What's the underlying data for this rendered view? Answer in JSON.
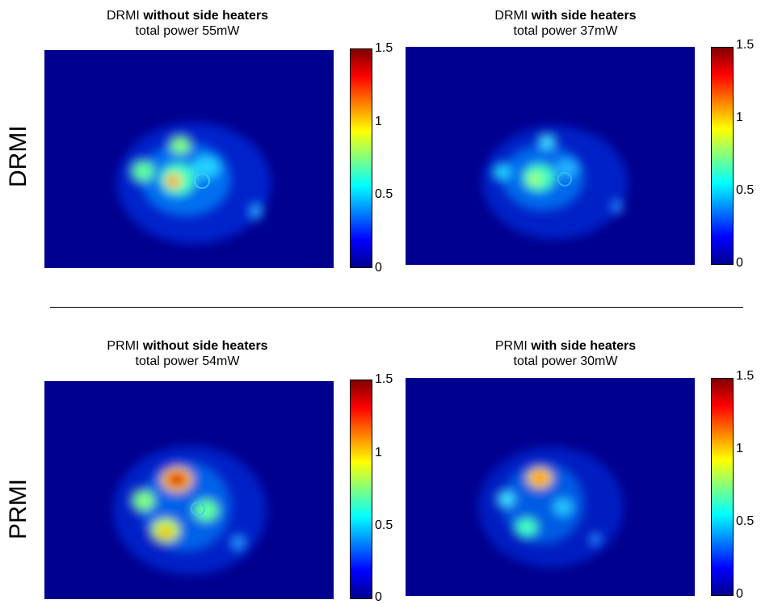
{
  "row_labels": {
    "top": "DRMI",
    "bottom": "PRMI"
  },
  "panels": [
    {
      "id": "drmi-without",
      "title_prefix": "DRMI",
      "title_bold": "without side heaters",
      "subtitle": "total power 55mW"
    },
    {
      "id": "drmi-with",
      "title_prefix": "DRMI",
      "title_bold": "with side heaters",
      "subtitle": "total power 37mW"
    },
    {
      "id": "prmi-without",
      "title_prefix": "PRMI",
      "title_bold": "without side heaters",
      "subtitle": "total power 54mW"
    },
    {
      "id": "prmi-with",
      "title_prefix": "PRMI",
      "title_bold": "with side heaters",
      "subtitle": "total power 30mW"
    }
  ],
  "colorbar": {
    "ticks": [
      "0",
      "0.5",
      "1",
      "1.5"
    ],
    "min": 0,
    "max": 1.5,
    "colormap": "jet"
  },
  "chart_data": [
    {
      "type": "heatmap",
      "title": "DRMI without side heaters",
      "subtitle": "total power 55mW",
      "colorbar_range": [
        0,
        1.5
      ],
      "colorbar_ticks": [
        0,
        0.5,
        1,
        1.5
      ]
    },
    {
      "type": "heatmap",
      "title": "DRMI with side heaters",
      "subtitle": "total power 37mW",
      "colorbar_range": [
        0,
        1.5
      ],
      "colorbar_ticks": [
        0,
        0.5,
        1,
        1.5
      ]
    },
    {
      "type": "heatmap",
      "title": "PRMI without side heaters",
      "subtitle": "total power 54mW",
      "colorbar_range": [
        0,
        1.5
      ],
      "colorbar_ticks": [
        0,
        0.5,
        1,
        1.5
      ]
    },
    {
      "type": "heatmap",
      "title": "PRMI with side heaters",
      "subtitle": "total power 30mW",
      "colorbar_range": [
        0,
        1.5
      ],
      "colorbar_ticks": [
        0,
        0.5,
        1,
        1.5
      ]
    }
  ]
}
